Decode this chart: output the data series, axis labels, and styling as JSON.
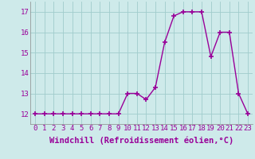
{
  "hours": [
    0,
    1,
    2,
    3,
    4,
    5,
    6,
    7,
    8,
    9,
    10,
    11,
    12,
    13,
    14,
    15,
    16,
    17,
    18,
    19,
    20,
    21,
    22,
    23
  ],
  "values": [
    12,
    12,
    12,
    12,
    12,
    12,
    12,
    12,
    12,
    12,
    13,
    13,
    12.7,
    13.3,
    15.5,
    16.8,
    17,
    17,
    17,
    14.8,
    16,
    16,
    13,
    12
  ],
  "line_color": "#990099",
  "marker": "+",
  "marker_size": 4,
  "marker_linewidth": 1.2,
  "line_width": 1.0,
  "background_color": "#ceeaea",
  "grid_color": "#a0cccc",
  "xlabel": "Windchill (Refroidissement éolien,°C)",
  "xlim": [
    -0.5,
    23.5
  ],
  "ylim": [
    11.5,
    17.5
  ],
  "xtick_labels": [
    "0",
    "1",
    "2",
    "3",
    "4",
    "5",
    "6",
    "7",
    "8",
    "9",
    "10",
    "11",
    "12",
    "13",
    "14",
    "15",
    "16",
    "17",
    "18",
    "19",
    "20",
    "21",
    "22",
    "23"
  ],
  "yticks": [
    12,
    13,
    14,
    15,
    16,
    17
  ],
  "xlabel_fontsize": 7.5,
  "tick_fontsize": 6.5
}
